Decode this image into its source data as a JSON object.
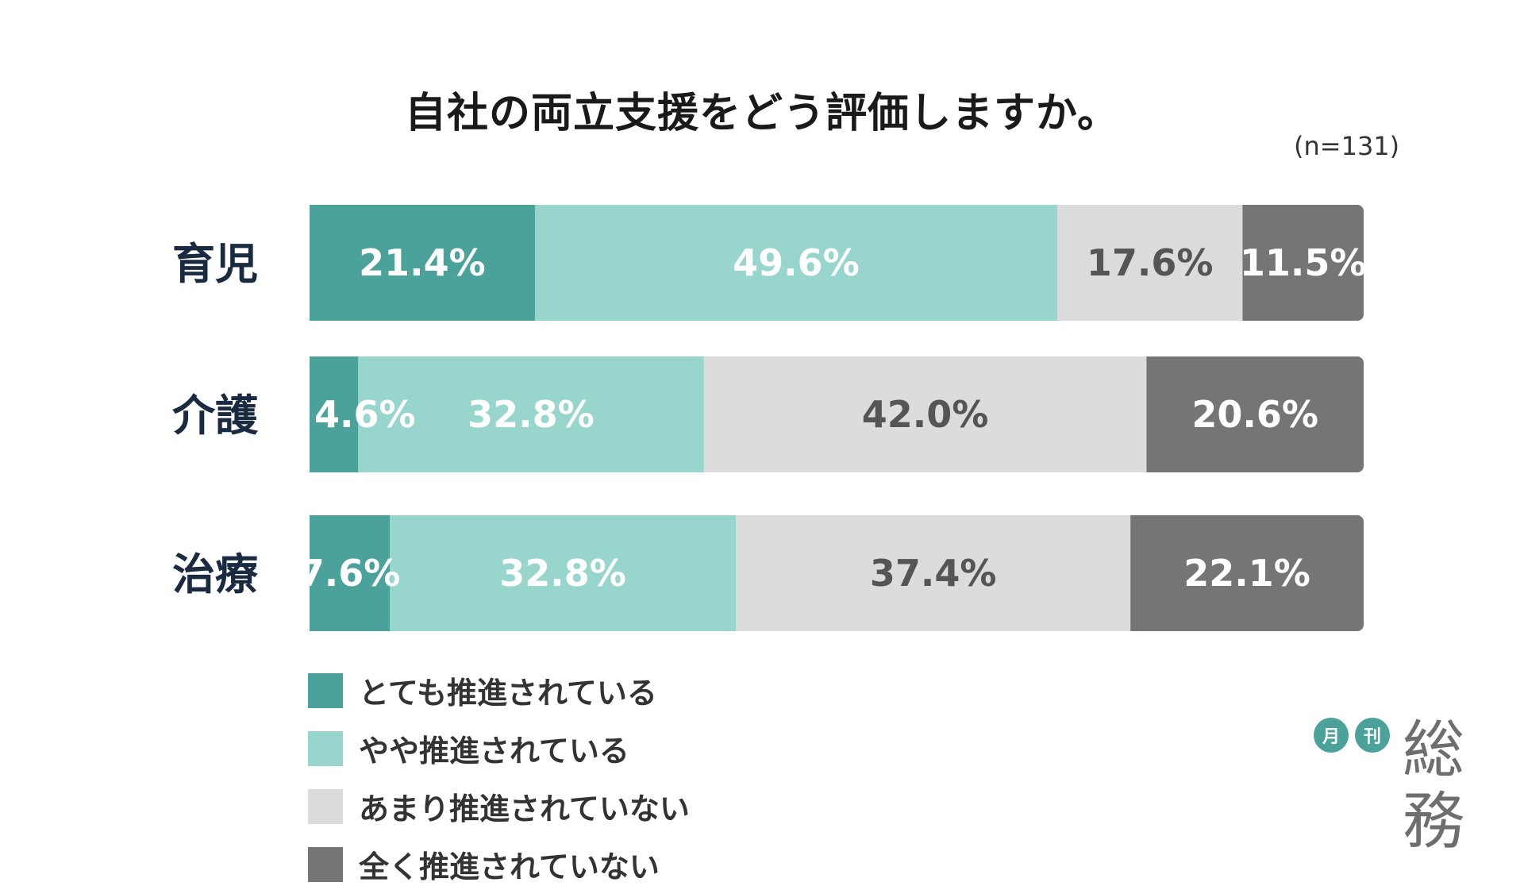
{
  "title": "自社の両立支援をどう評価しますか。",
  "sample_size": "(n=131)",
  "colors": {
    "very": "#4aa29a",
    "somewhat": "#98d5cc",
    "not_much": "#dcdcdc",
    "not_at_all": "#757575",
    "label_light": "#ffffff",
    "label_dark": "#555555",
    "category_text": "#1a2a40"
  },
  "chart_data": {
    "type": "bar",
    "orientation": "horizontal-stacked-100",
    "categories": [
      "育児",
      "介護",
      "治療"
    ],
    "series": [
      {
        "name": "とても推進されている",
        "values": [
          21.4,
          4.6,
          7.6
        ],
        "labels": [
          "21.4%",
          "4.6%",
          "7.6%"
        ]
      },
      {
        "name": "やや推進されている",
        "values": [
          49.6,
          32.8,
          32.8
        ],
        "labels": [
          "49.6%",
          "32.8%",
          "32.8%"
        ]
      },
      {
        "name": "あまり推進されていない",
        "values": [
          17.6,
          42.0,
          37.4
        ],
        "labels": [
          "17.6%",
          "42.0%",
          "37.4%"
        ]
      },
      {
        "name": "全く推進されていない",
        "values": [
          11.5,
          20.6,
          22.1
        ],
        "labels": [
          "11.5%",
          "20.6%",
          "22.1%"
        ]
      }
    ],
    "xlim": [
      0,
      100
    ],
    "legend_position": "bottom",
    "grid": false
  },
  "logo": {
    "circle1": "月",
    "circle2": "刊",
    "name": "総務"
  }
}
